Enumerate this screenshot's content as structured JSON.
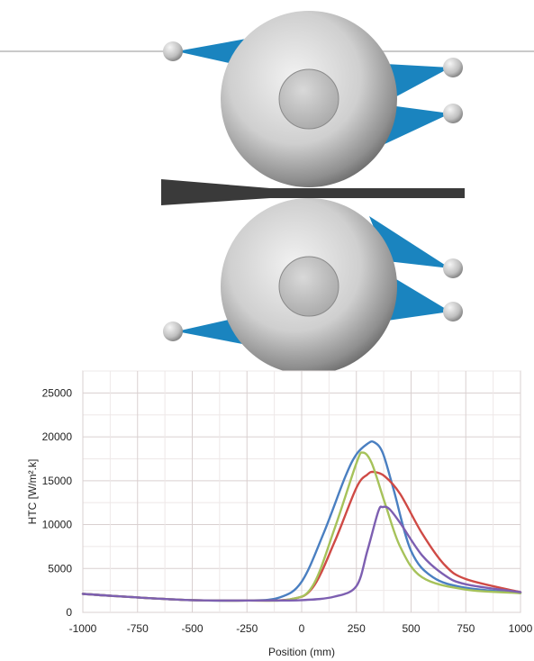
{
  "figure": {
    "sprays": [
      "spray-nozzle-icon",
      "spray-nozzle-icon",
      "spray-nozzle-icon",
      "spray-nozzle-icon",
      "spray-nozzle-icon",
      "spray-nozzle-icon"
    ],
    "spray_color": "#1a84bf",
    "roll_color": "#c9c9c9",
    "strip_color": "#3a3a3a"
  },
  "chart_data": {
    "type": "line",
    "title": "",
    "xlabel": "Position (mm)",
    "ylabel": "HTC [W/m².k]",
    "xlim": [
      -1000,
      1000
    ],
    "ylim": [
      0,
      27500
    ],
    "xticks": [
      -1000,
      -750,
      -500,
      -250,
      0,
      250,
      500,
      750,
      1000
    ],
    "yticks": [
      0,
      5000,
      10000,
      15000,
      20000,
      25000
    ],
    "grid": true,
    "legend": "none",
    "series": [
      {
        "color": "#4a7fc1",
        "x": [
          -1000,
          -750,
          -500,
          -250,
          -100,
          0,
          100,
          200,
          250,
          300,
          330,
          370,
          420,
          500,
          600,
          750,
          1000
        ],
        "y": [
          2100,
          1700,
          1400,
          1350,
          1700,
          3500,
          9000,
          15500,
          18000,
          19200,
          19400,
          18200,
          14000,
          7000,
          4000,
          2800,
          2200
        ]
      },
      {
        "color": "#cf4a45",
        "x": [
          -1000,
          -750,
          -500,
          -250,
          -50,
          50,
          150,
          250,
          300,
          330,
          380,
          450,
          550,
          650,
          750,
          1000
        ],
        "y": [
          2100,
          1700,
          1400,
          1350,
          1500,
          2800,
          8000,
          14200,
          15700,
          16000,
          15500,
          13500,
          9000,
          5500,
          3800,
          2300
        ]
      },
      {
        "color": "#a6c25a",
        "x": [
          -1000,
          -750,
          -500,
          -250,
          -50,
          50,
          150,
          250,
          280,
          320,
          380,
          450,
          550,
          750,
          1000
        ],
        "y": [
          2100,
          1700,
          1400,
          1350,
          1500,
          3000,
          9500,
          17000,
          18200,
          17000,
          12500,
          7500,
          4000,
          2600,
          2200
        ]
      },
      {
        "color": "#7d5fb1",
        "x": [
          -1000,
          -750,
          -500,
          -250,
          0,
          150,
          250,
          300,
          350,
          370,
          400,
          450,
          550,
          650,
          750,
          1000
        ],
        "y": [
          2100,
          1700,
          1400,
          1350,
          1400,
          1800,
          3000,
          7000,
          11500,
          12000,
          11800,
          10200,
          6500,
          4300,
          3200,
          2300
        ]
      }
    ]
  }
}
